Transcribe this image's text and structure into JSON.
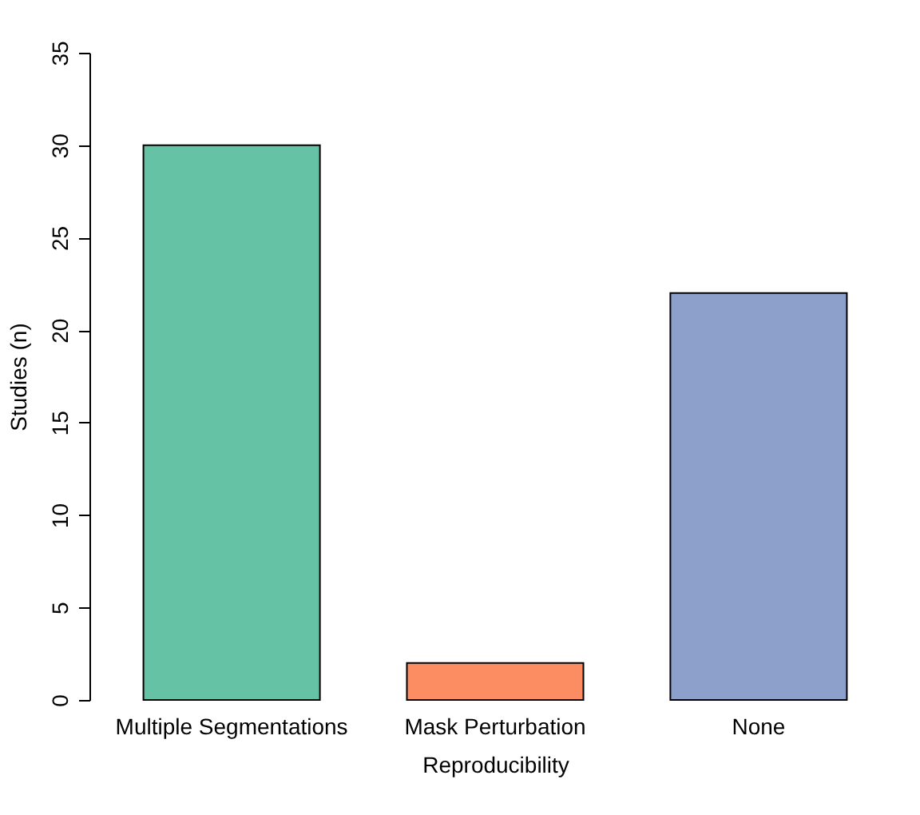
{
  "chart_data": {
    "type": "bar",
    "xlabel": "Reproducibility",
    "ylabel": "Studies (n)",
    "categories": [
      "Multiple Segmentations",
      "Mask Perturbation",
      "None"
    ],
    "values": [
      30,
      2,
      22
    ],
    "colors": [
      "#66c2a5",
      "#fc8d62",
      "#8da0cb"
    ],
    "ylim": [
      0,
      35
    ],
    "yticks": [
      0,
      5,
      10,
      15,
      20,
      25,
      30,
      35
    ],
    "grid": false
  }
}
